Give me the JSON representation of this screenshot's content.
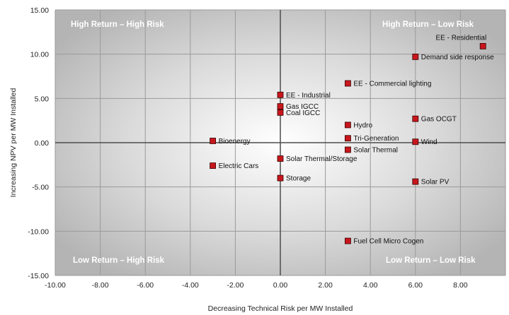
{
  "chart_data": {
    "type": "scatter",
    "title": "",
    "xlabel": "Decreasing Technical Risk per MW Installed",
    "ylabel": "Increasing NPV per MW Installed",
    "xlim": [
      -10,
      10
    ],
    "ylim": [
      -15,
      15
    ],
    "xticks": [
      "-10.00",
      "-8.00",
      "-6.00",
      "-4.00",
      "-2.00",
      "0.00",
      "2.00",
      "4.00",
      "6.00",
      "8.00"
    ],
    "xtick_values": [
      -10,
      -8,
      -6,
      -4,
      -2,
      0,
      2,
      4,
      6,
      8
    ],
    "yticks": [
      "15.00",
      "10.00",
      "5.00",
      "0.00",
      "-5.00",
      "-10.00",
      "-15.00"
    ],
    "ytick_values": [
      15,
      10,
      5,
      0,
      -5,
      -10,
      -15
    ],
    "x_gridlines": [
      -10,
      -8,
      -6,
      -4,
      -2,
      0,
      2,
      4,
      6,
      8,
      10
    ],
    "y_gridlines": [
      15,
      10,
      5,
      0,
      -5,
      -10,
      -15
    ],
    "grid": true,
    "marker_color": "#c8161d",
    "quadrants": {
      "top_left": "High Return – High Risk",
      "top_right": "High Return – Low Risk",
      "bottom_left": "Low Return – High Risk",
      "bottom_right": "Low Return – Low Risk"
    },
    "points": [
      {
        "label": "EE - Residential",
        "x": 9.0,
        "y": 10.9,
        "label_pos": "above-left"
      },
      {
        "label": "Demand side response",
        "x": 6.0,
        "y": 9.7,
        "label_pos": "right"
      },
      {
        "label": "EE - Commercial lighting",
        "x": 3.0,
        "y": 6.7,
        "label_pos": "right"
      },
      {
        "label": "EE - Industrial",
        "x": 0.0,
        "y": 5.4,
        "label_pos": "right"
      },
      {
        "label": "Gas IGCC",
        "x": 0.0,
        "y": 4.1,
        "label_pos": "right"
      },
      {
        "label": "Coal IGCC",
        "x": 0.0,
        "y": 3.4,
        "label_pos": "right"
      },
      {
        "label": "Gas OCGT",
        "x": 6.0,
        "y": 2.7,
        "label_pos": "right"
      },
      {
        "label": "Hydro",
        "x": 3.0,
        "y": 2.0,
        "label_pos": "right"
      },
      {
        "label": "Tri-Generation",
        "x": 3.0,
        "y": 0.5,
        "label_pos": "right"
      },
      {
        "label": "Wind",
        "x": 6.0,
        "y": 0.1,
        "label_pos": "right"
      },
      {
        "label": "Bioenergy",
        "x": -3.0,
        "y": 0.2,
        "label_pos": "right"
      },
      {
        "label": "Solar Thermal",
        "x": 3.0,
        "y": -0.8,
        "label_pos": "right"
      },
      {
        "label": "Solar Thermal/Storage",
        "x": 0.0,
        "y": -1.8,
        "label_pos": "right"
      },
      {
        "label": "Electric Cars",
        "x": -3.0,
        "y": -2.6,
        "label_pos": "right"
      },
      {
        "label": "Storage",
        "x": 0.0,
        "y": -4.0,
        "label_pos": "right"
      },
      {
        "label": "Solar PV",
        "x": 6.0,
        "y": -4.4,
        "label_pos": "right"
      },
      {
        "label": "Fuel Cell Micro Cogen",
        "x": 3.0,
        "y": -11.1,
        "label_pos": "right"
      }
    ]
  }
}
